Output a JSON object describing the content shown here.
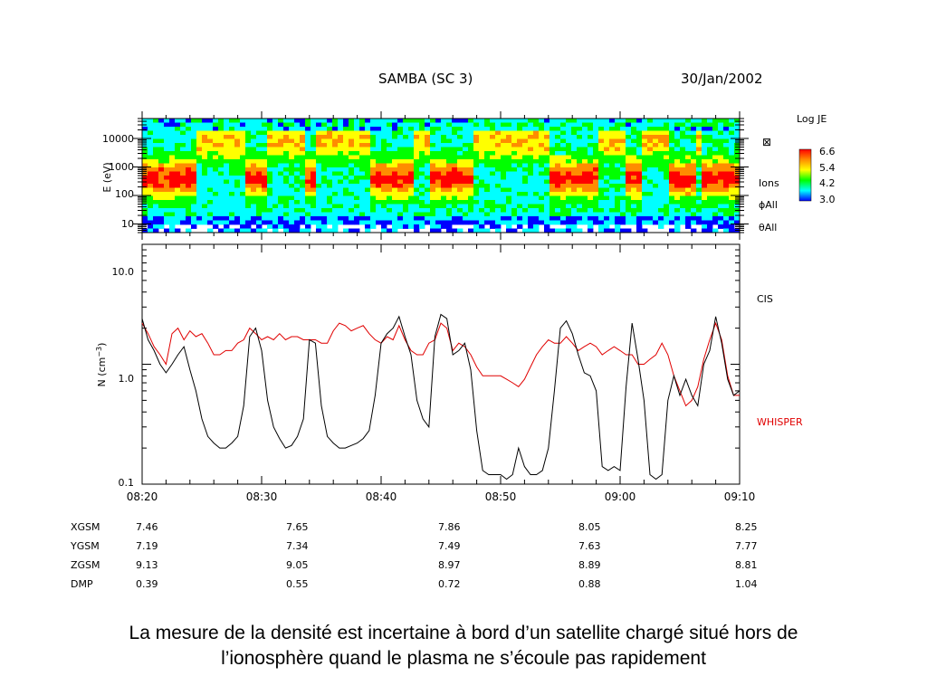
{
  "header": {
    "title": "SAMBA (SC 3)",
    "date": "30/Jan/2002"
  },
  "caption": {
    "line1": "La mesure de la densité est incertaine à bord d’un satellite chargé situé hors de",
    "line2": "l’ionosphère quand le plasma ne s’écoule pas rapidement"
  },
  "colorbar": {
    "title": "Log JE",
    "ticks": [
      "6.6",
      "5.4",
      "4.2",
      "3.0"
    ],
    "colors": [
      "#ff0000",
      "#ff8c00",
      "#ffff00",
      "#00ff00",
      "#00ffff",
      "#0000ff"
    ]
  },
  "spectrogram_labels": {
    "ions": "Ions",
    "phi_all": "ϕAll",
    "theta_all": "θAll",
    "marker": "⊠"
  },
  "density_labels": {
    "cis": "CIS",
    "whisper": "WHISPER"
  },
  "colors": {
    "cis": "#000000",
    "whisper": "#e00000"
  },
  "chart_data": [
    {
      "type": "heatmap",
      "ylabel": "E (eV)",
      "yscale": "log",
      "ytick_labels": [
        "10000",
        "1000",
        "100",
        "10"
      ],
      "ytick_values": [
        10000,
        1000,
        100,
        10
      ],
      "ylim": [
        5,
        50000
      ],
      "colorbar_label": "Log JE",
      "clim": [
        3.0,
        6.6
      ],
      "xlim": [
        "08:20",
        "09:10"
      ]
    },
    {
      "type": "line",
      "ylabel": "N (cm⁻³)",
      "yscale": "log",
      "ylim": [
        0.1,
        10.0
      ],
      "ytick_labels": [
        "10.0",
        "1.0",
        "0.1"
      ],
      "ytick_values": [
        10.0,
        1.0,
        0.1
      ],
      "xlim": [
        "08:20",
        "09:10"
      ],
      "xtick_labels": [
        "08:20",
        "08:30",
        "08:40",
        "08:50",
        "09:00",
        "09:10"
      ],
      "xtick_minutes": [
        0,
        10,
        20,
        30,
        40,
        50
      ],
      "series": [
        {
          "name": "CIS",
          "x": [
            0,
            0.5,
            1,
            1.5,
            2,
            2.5,
            3,
            3.5,
            4,
            4.5,
            5,
            5.5,
            6,
            6.5,
            7,
            7.5,
            8,
            8.5,
            9,
            9.5,
            10,
            10.5,
            11,
            11.5,
            12,
            12.5,
            13,
            13.5,
            14,
            14.5,
            15,
            15.5,
            16,
            16.5,
            17,
            17.5,
            18,
            18.5,
            19,
            19.5,
            20,
            20.5,
            21,
            21.5,
            22,
            22.5,
            23,
            23.5,
            24,
            24.5,
            25,
            25.5,
            26,
            26.5,
            27,
            27.5,
            28,
            28.5,
            29,
            29.5,
            30,
            30.5,
            31,
            31.5,
            32,
            32.5,
            33,
            33.5,
            34,
            34.5,
            35,
            35.5,
            36,
            36.5,
            37,
            37.5,
            38,
            38.5,
            39,
            39.5,
            40,
            40.5,
            41,
            41.5,
            42,
            42.5,
            43,
            43.5,
            44,
            44.5,
            45,
            45.5,
            46,
            46.5,
            47,
            47.5,
            48,
            48.5,
            49,
            49.5,
            50
          ],
          "values": [
            2.4,
            1.6,
            1.3,
            1.0,
            0.85,
            1.0,
            1.2,
            1.4,
            0.9,
            0.6,
            0.35,
            0.25,
            0.22,
            0.2,
            0.2,
            0.22,
            0.25,
            0.45,
            1.7,
            2.0,
            1.3,
            0.5,
            0.3,
            0.24,
            0.2,
            0.21,
            0.25,
            0.35,
            1.6,
            1.5,
            0.45,
            0.25,
            0.22,
            0.2,
            0.2,
            0.21,
            0.22,
            0.24,
            0.28,
            0.55,
            1.5,
            1.8,
            2.0,
            2.5,
            1.7,
            1.2,
            0.5,
            0.35,
            0.3,
            1.7,
            2.6,
            2.4,
            1.2,
            1.3,
            1.5,
            0.9,
            0.28,
            0.13,
            0.12,
            0.12,
            0.12,
            0.11,
            0.12,
            0.2,
            0.14,
            0.12,
            0.12,
            0.13,
            0.2,
            0.6,
            2.0,
            2.3,
            1.8,
            1.2,
            0.85,
            0.8,
            0.6,
            0.14,
            0.13,
            0.14,
            0.13,
            0.65,
            2.2,
            1.1,
            0.5,
            0.12,
            0.11,
            0.12,
            0.5,
            0.8,
            0.55,
            0.75,
            0.55,
            0.45,
            1.0,
            1.3,
            2.5,
            1.5,
            0.75,
            0.55,
            0.6
          ]
        },
        {
          "name": "WHISPER",
          "x": [
            0,
            0.5,
            1,
            1.5,
            2,
            2.5,
            3,
            3.5,
            4,
            4.5,
            5,
            5.5,
            6,
            6.5,
            7,
            7.5,
            8,
            8.5,
            9,
            9.5,
            10,
            10.5,
            11,
            11.5,
            12,
            12.5,
            13,
            13.5,
            14,
            14.5,
            15,
            15.5,
            16,
            16.5,
            17,
            17.5,
            18,
            18.5,
            19,
            19.5,
            20,
            20.5,
            21,
            21.5,
            22,
            22.5,
            23,
            23.5,
            24,
            24.5,
            25,
            25.5,
            26,
            26.5,
            27,
            27.5,
            28,
            28.5,
            29,
            29.5,
            30,
            30.5,
            31,
            31.5,
            32,
            32.5,
            33,
            33.5,
            34,
            34.5,
            35,
            35.5,
            36,
            36.5,
            37,
            37.5,
            38,
            38.5,
            39,
            39.5,
            40,
            40.5,
            41,
            41.5,
            42,
            42.5,
            43,
            43.5,
            44,
            44.5,
            45,
            45.5,
            46,
            46.5,
            47,
            47.5,
            48,
            48.5,
            49,
            49.5,
            50
          ],
          "values": [
            2.2,
            1.8,
            1.4,
            1.2,
            1.0,
            1.8,
            2.0,
            1.6,
            1.9,
            1.7,
            1.8,
            1.5,
            1.2,
            1.2,
            1.3,
            1.3,
            1.5,
            1.6,
            2.0,
            1.8,
            1.6,
            1.7,
            1.6,
            1.8,
            1.6,
            1.7,
            1.7,
            1.6,
            1.6,
            1.6,
            1.5,
            1.5,
            1.9,
            2.2,
            2.1,
            1.9,
            2.0,
            2.1,
            1.8,
            1.6,
            1.5,
            1.7,
            1.6,
            2.1,
            1.6,
            1.3,
            1.2,
            1.2,
            1.5,
            1.6,
            2.2,
            2.0,
            1.3,
            1.5,
            1.4,
            1.2,
            0.95,
            0.8,
            0.8,
            0.8,
            0.8,
            0.75,
            0.7,
            0.65,
            0.75,
            0.95,
            1.2,
            1.4,
            1.6,
            1.5,
            1.5,
            1.7,
            1.5,
            1.3,
            1.4,
            1.5,
            1.4,
            1.2,
            1.3,
            1.4,
            1.3,
            1.2,
            1.2,
            1.0,
            1.0,
            1.1,
            1.2,
            1.5,
            1.2,
            0.8,
            0.6,
            0.45,
            0.5,
            0.65,
            1.1,
            1.6,
            2.2,
            1.6,
            0.8,
            0.55,
            0.55
          ]
        }
      ]
    }
  ],
  "positions_table": {
    "rows": [
      {
        "label": "XGSM",
        "values": [
          "7.46",
          "7.65",
          "7.86",
          "8.05",
          "8.25"
        ]
      },
      {
        "label": "YGSM",
        "values": [
          "7.19",
          "7.34",
          "7.49",
          "7.63",
          "7.77"
        ]
      },
      {
        "label": "ZGSM",
        "values": [
          "9.13",
          "9.05",
          "8.97",
          "8.89",
          "8.81"
        ]
      },
      {
        "label": "DMP",
        "values": [
          "0.39",
          "0.55",
          "0.72",
          "0.88",
          "1.04"
        ]
      }
    ]
  }
}
